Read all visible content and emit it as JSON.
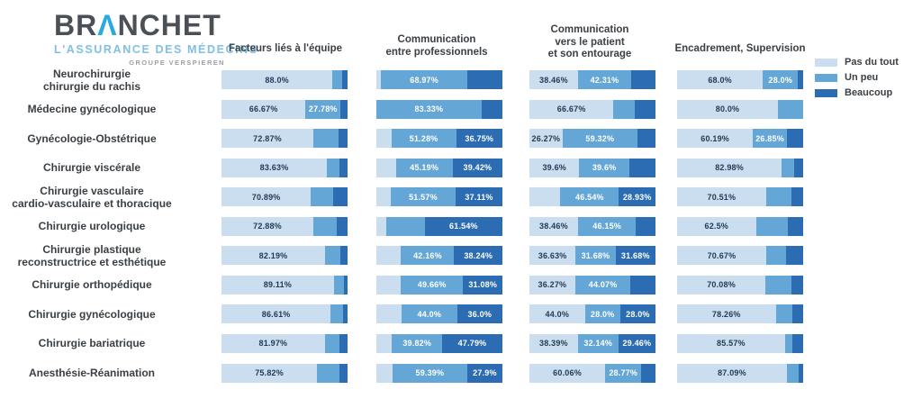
{
  "logo": {
    "brand_left": "BR",
    "brand_a": "Λ",
    "brand_right": "NCHET",
    "tagline": "L'ASSURANCE DES MÉDECINS",
    "group": "GROUPE VERSPIEREN"
  },
  "legend": [
    {
      "label": "Pas du tout",
      "color": "#cadef0"
    },
    {
      "label": "Un peu",
      "color": "#64a7d7"
    },
    {
      "label": "Beaucoup",
      "color": "#2b6cb2"
    }
  ],
  "chart_data": {
    "type": "bar",
    "stacked": true,
    "orientation": "horizontal",
    "unit": "percent",
    "xlim": [
      0,
      100
    ],
    "grid": false,
    "legend_position": "top-right",
    "series_names": [
      "Pas du tout",
      "Un peu",
      "Beaucoup"
    ],
    "colors": [
      "#cadef0",
      "#64a7d7",
      "#2b6cb2"
    ],
    "label_color_on_light": "#223b55",
    "label_color_on_dark": "#ffffff",
    "columns": [
      "Facteurs liés à l'équipe",
      "Communication\nentre professionnels",
      "Communication\nvers le patient\net son entourage",
      "Encadrement, Supervision"
    ],
    "rows": [
      {
        "label": "Neurochirurgie\nchirurgie du rachis",
        "bars": [
          [
            {
              "v": 88.0,
              "t": "88.0%"
            },
            {
              "v": 8.0,
              "t": null
            },
            {
              "v": 4.0,
              "t": null
            }
          ],
          [
            {
              "v": 3.45,
              "t": null
            },
            {
              "v": 68.97,
              "t": "68.97%"
            },
            {
              "v": 27.58,
              "t": null
            }
          ],
          [
            {
              "v": 38.46,
              "t": "38.46%"
            },
            {
              "v": 42.31,
              "t": "42.31%"
            },
            {
              "v": 19.23,
              "t": null
            }
          ],
          [
            {
              "v": 68.0,
              "t": "68.0%"
            },
            {
              "v": 28.0,
              "t": "28.0%"
            },
            {
              "v": 4.0,
              "t": null
            }
          ]
        ]
      },
      {
        "label": "Médecine gynécologique",
        "bars": [
          [
            {
              "v": 66.67,
              "t": "66.67%"
            },
            {
              "v": 27.78,
              "t": "27.78%"
            },
            {
              "v": 5.55,
              "t": null
            }
          ],
          [
            {
              "v": 0,
              "t": null
            },
            {
              "v": 83.33,
              "t": "83.33%"
            },
            {
              "v": 16.67,
              "t": null
            }
          ],
          [
            {
              "v": 66.67,
              "t": "66.67%"
            },
            {
              "v": 16.67,
              "t": null
            },
            {
              "v": 16.66,
              "t": null
            }
          ],
          [
            {
              "v": 80.0,
              "t": "80.0%"
            },
            {
              "v": 20.0,
              "t": null
            },
            {
              "v": 0,
              "t": null
            }
          ]
        ]
      },
      {
        "label": "Gynécologie-Obstétrique",
        "bars": [
          [
            {
              "v": 72.87,
              "t": "72.87%"
            },
            {
              "v": 20.0,
              "t": null
            },
            {
              "v": 7.13,
              "t": null
            }
          ],
          [
            {
              "v": 11.97,
              "t": null
            },
            {
              "v": 51.28,
              "t": "51.28%"
            },
            {
              "v": 36.75,
              "t": "36.75%"
            }
          ],
          [
            {
              "v": 26.27,
              "t": "26.27%"
            },
            {
              "v": 59.32,
              "t": "59.32%"
            },
            {
              "v": 14.41,
              "t": null
            }
          ],
          [
            {
              "v": 60.19,
              "t": "60.19%"
            },
            {
              "v": 26.85,
              "t": "26.85%"
            },
            {
              "v": 12.96,
              "t": null
            }
          ]
        ]
      },
      {
        "label": "Chirurgie viscérale",
        "bars": [
          [
            {
              "v": 83.63,
              "t": "83.63%"
            },
            {
              "v": 9.62,
              "t": null
            },
            {
              "v": 6.75,
              "t": null
            }
          ],
          [
            {
              "v": 15.39,
              "t": null
            },
            {
              "v": 45.19,
              "t": "45.19%"
            },
            {
              "v": 39.42,
              "t": "39.42%"
            }
          ],
          [
            {
              "v": 39.6,
              "t": "39.6%"
            },
            {
              "v": 39.6,
              "t": "39.6%"
            },
            {
              "v": 20.8,
              "t": null
            }
          ],
          [
            {
              "v": 82.98,
              "t": "82.98%"
            },
            {
              "v": 10.0,
              "t": null
            },
            {
              "v": 7.02,
              "t": null
            }
          ]
        ]
      },
      {
        "label": "Chirurgie vasculaire\ncardio-vasculaire et thoracique",
        "bars": [
          [
            {
              "v": 70.89,
              "t": "70.89%"
            },
            {
              "v": 17.72,
              "t": null
            },
            {
              "v": 11.39,
              "t": null
            }
          ],
          [
            {
              "v": 11.32,
              "t": null
            },
            {
              "v": 51.57,
              "t": "51.57%"
            },
            {
              "v": 37.11,
              "t": "37.11%"
            }
          ],
          [
            {
              "v": 24.53,
              "t": null
            },
            {
              "v": 46.54,
              "t": "46.54%"
            },
            {
              "v": 28.93,
              "t": "28.93%"
            }
          ],
          [
            {
              "v": 70.51,
              "t": "70.51%"
            },
            {
              "v": 20.51,
              "t": null
            },
            {
              "v": 8.98,
              "t": null
            }
          ]
        ]
      },
      {
        "label": "Chirurgie urologique",
        "bars": [
          [
            {
              "v": 72.88,
              "t": "72.88%"
            },
            {
              "v": 18.64,
              "t": null
            },
            {
              "v": 8.48,
              "t": null
            }
          ],
          [
            {
              "v": 7.69,
              "t": null
            },
            {
              "v": 30.77,
              "t": null
            },
            {
              "v": 61.54,
              "t": "61.54%"
            }
          ],
          [
            {
              "v": 38.46,
              "t": "38.46%"
            },
            {
              "v": 46.15,
              "t": "46.15%"
            },
            {
              "v": 15.39,
              "t": null
            }
          ],
          [
            {
              "v": 62.5,
              "t": "62.5%"
            },
            {
              "v": 25.0,
              "t": null
            },
            {
              "v": 12.5,
              "t": null
            }
          ]
        ]
      },
      {
        "label": "Chirurgie plastique\nreconstructrice et esthétique",
        "bars": [
          [
            {
              "v": 82.19,
              "t": "82.19%"
            },
            {
              "v": 11.87,
              "t": null
            },
            {
              "v": 5.94,
              "t": null
            }
          ],
          [
            {
              "v": 19.6,
              "t": null
            },
            {
              "v": 42.16,
              "t": "42.16%"
            },
            {
              "v": 38.24,
              "t": "38.24%"
            }
          ],
          [
            {
              "v": 36.63,
              "t": "36.63%"
            },
            {
              "v": 31.68,
              "t": "31.68%"
            },
            {
              "v": 31.68,
              "t": "31.68%"
            }
          ],
          [
            {
              "v": 70.67,
              "t": "70.67%"
            },
            {
              "v": 16.0,
              "t": null
            },
            {
              "v": 13.33,
              "t": null
            }
          ]
        ]
      },
      {
        "label": "Chirurgie orthopédique",
        "bars": [
          [
            {
              "v": 89.11,
              "t": "89.11%"
            },
            {
              "v": 7.92,
              "t": null
            },
            {
              "v": 2.97,
              "t": null
            }
          ],
          [
            {
              "v": 19.26,
              "t": null
            },
            {
              "v": 49.66,
              "t": "49.66%"
            },
            {
              "v": 31.08,
              "t": "31.08%"
            }
          ],
          [
            {
              "v": 36.27,
              "t": "36.27%"
            },
            {
              "v": 44.07,
              "t": "44.07%"
            },
            {
              "v": 19.66,
              "t": null
            }
          ],
          [
            {
              "v": 70.08,
              "t": "70.08%"
            },
            {
              "v": 20.92,
              "t": null
            },
            {
              "v": 9.0,
              "t": null
            }
          ]
        ]
      },
      {
        "label": "Chirurgie gynécologique",
        "bars": [
          [
            {
              "v": 86.61,
              "t": "86.61%"
            },
            {
              "v": 9.82,
              "t": null
            },
            {
              "v": 3.57,
              "t": null
            }
          ],
          [
            {
              "v": 20.0,
              "t": null
            },
            {
              "v": 44.0,
              "t": "44.0%"
            },
            {
              "v": 36.0,
              "t": "36.0%"
            }
          ],
          [
            {
              "v": 44.0,
              "t": "44.0%"
            },
            {
              "v": 28.0,
              "t": "28.0%"
            },
            {
              "v": 28.0,
              "t": "28.0%"
            }
          ],
          [
            {
              "v": 78.26,
              "t": "78.26%"
            },
            {
              "v": 13.04,
              "t": null
            },
            {
              "v": 8.7,
              "t": null
            }
          ]
        ]
      },
      {
        "label": "Chirurgie bariatrique",
        "bars": [
          [
            {
              "v": 81.97,
              "t": "81.97%"
            },
            {
              "v": 11.48,
              "t": null
            },
            {
              "v": 6.55,
              "t": null
            }
          ],
          [
            {
              "v": 12.39,
              "t": null
            },
            {
              "v": 39.82,
              "t": "39.82%"
            },
            {
              "v": 47.79,
              "t": "47.79%"
            }
          ],
          [
            {
              "v": 38.39,
              "t": "38.39%"
            },
            {
              "v": 32.14,
              "t": "32.14%"
            },
            {
              "v": 29.46,
              "t": "29.46%"
            }
          ],
          [
            {
              "v": 85.57,
              "t": "85.57%"
            },
            {
              "v": 6.19,
              "t": null
            },
            {
              "v": 8.24,
              "t": null
            }
          ]
        ]
      },
      {
        "label": "Anesthésie-Réanimation",
        "bars": [
          [
            {
              "v": 75.82,
              "t": "75.82%"
            },
            {
              "v": 17.58,
              "t": null
            },
            {
              "v": 6.6,
              "t": null
            }
          ],
          [
            {
              "v": 12.71,
              "t": null
            },
            {
              "v": 59.39,
              "t": "59.39%"
            },
            {
              "v": 27.9,
              "t": "27.9%"
            }
          ],
          [
            {
              "v": 60.06,
              "t": "60.06%"
            },
            {
              "v": 28.77,
              "t": "28.77%"
            },
            {
              "v": 11.17,
              "t": null
            }
          ],
          [
            {
              "v": 87.09,
              "t": "87.09%"
            },
            {
              "v": 9.68,
              "t": null
            },
            {
              "v": 3.23,
              "t": null
            }
          ]
        ]
      }
    ]
  }
}
